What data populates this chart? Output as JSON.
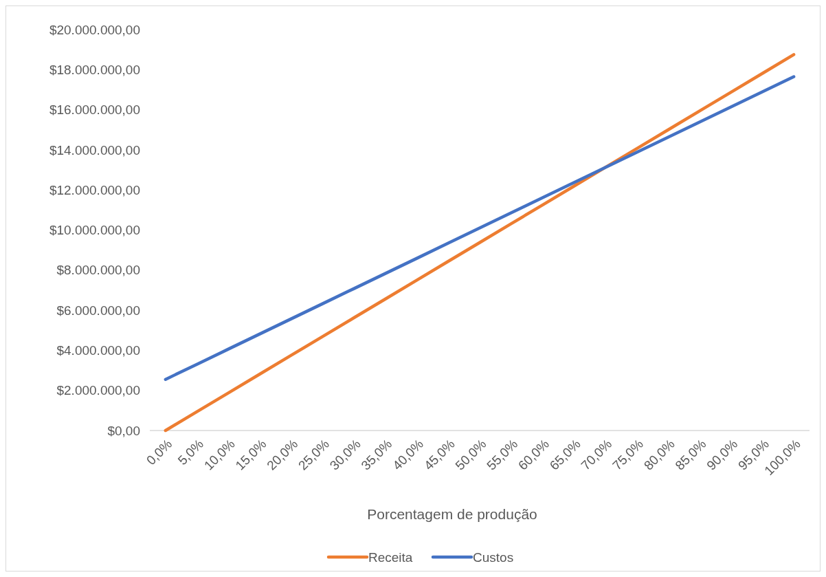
{
  "chart_data": {
    "type": "line",
    "xlabel": "Porcentagem de produção",
    "categories": [
      "0,0%",
      "5,0%",
      "10,0%",
      "15,0%",
      "20,0%",
      "25,0%",
      "30,0%",
      "35,0%",
      "40,0%",
      "45,0%",
      "50,0%",
      "55,0%",
      "60,0%",
      "65,0%",
      "70,0%",
      "75,0%",
      "80,0%",
      "85,0%",
      "90,0%",
      "95,0%",
      "100,0%"
    ],
    "series": [
      {
        "name": "Receita",
        "color": "#ed7d31",
        "values": [
          0,
          937500,
          1875000,
          2812500,
          3750000,
          4687500,
          5625000,
          6562500,
          7500000,
          8437500,
          9375000,
          10312500,
          11250000,
          12187500,
          13125000,
          14062500,
          15000000,
          15937500,
          16875000,
          17812500,
          18750000
        ]
      },
      {
        "name": "Custos",
        "color": "#4472c4",
        "values": [
          2550000,
          3305000,
          4060000,
          4815000,
          5570000,
          6325000,
          7080000,
          7835000,
          8590000,
          9345000,
          10100000,
          10855000,
          11610000,
          12365000,
          13120000,
          13875000,
          14630000,
          15385000,
          16140000,
          16895000,
          17650000
        ]
      }
    ],
    "ylim": [
      0,
      20000000
    ],
    "yticks": [
      {
        "value": 0,
        "label": "$0,00"
      },
      {
        "value": 2000000,
        "label": "$2.000.000,00"
      },
      {
        "value": 4000000,
        "label": "$4.000.000,00"
      },
      {
        "value": 6000000,
        "label": "$6.000.000,00"
      },
      {
        "value": 8000000,
        "label": "$8.000.000,00"
      },
      {
        "value": 10000000,
        "label": "$10.000.000,00"
      },
      {
        "value": 12000000,
        "label": "$12.000.000,00"
      },
      {
        "value": 14000000,
        "label": "$14.000.000,00"
      },
      {
        "value": 16000000,
        "label": "$16.000.000,00"
      },
      {
        "value": 18000000,
        "label": "$18.000.000,00"
      },
      {
        "value": 20000000,
        "label": "$20.000.000,00"
      }
    ],
    "grid": false,
    "legend": "bottom",
    "marker": "none",
    "line_style": "solid"
  }
}
